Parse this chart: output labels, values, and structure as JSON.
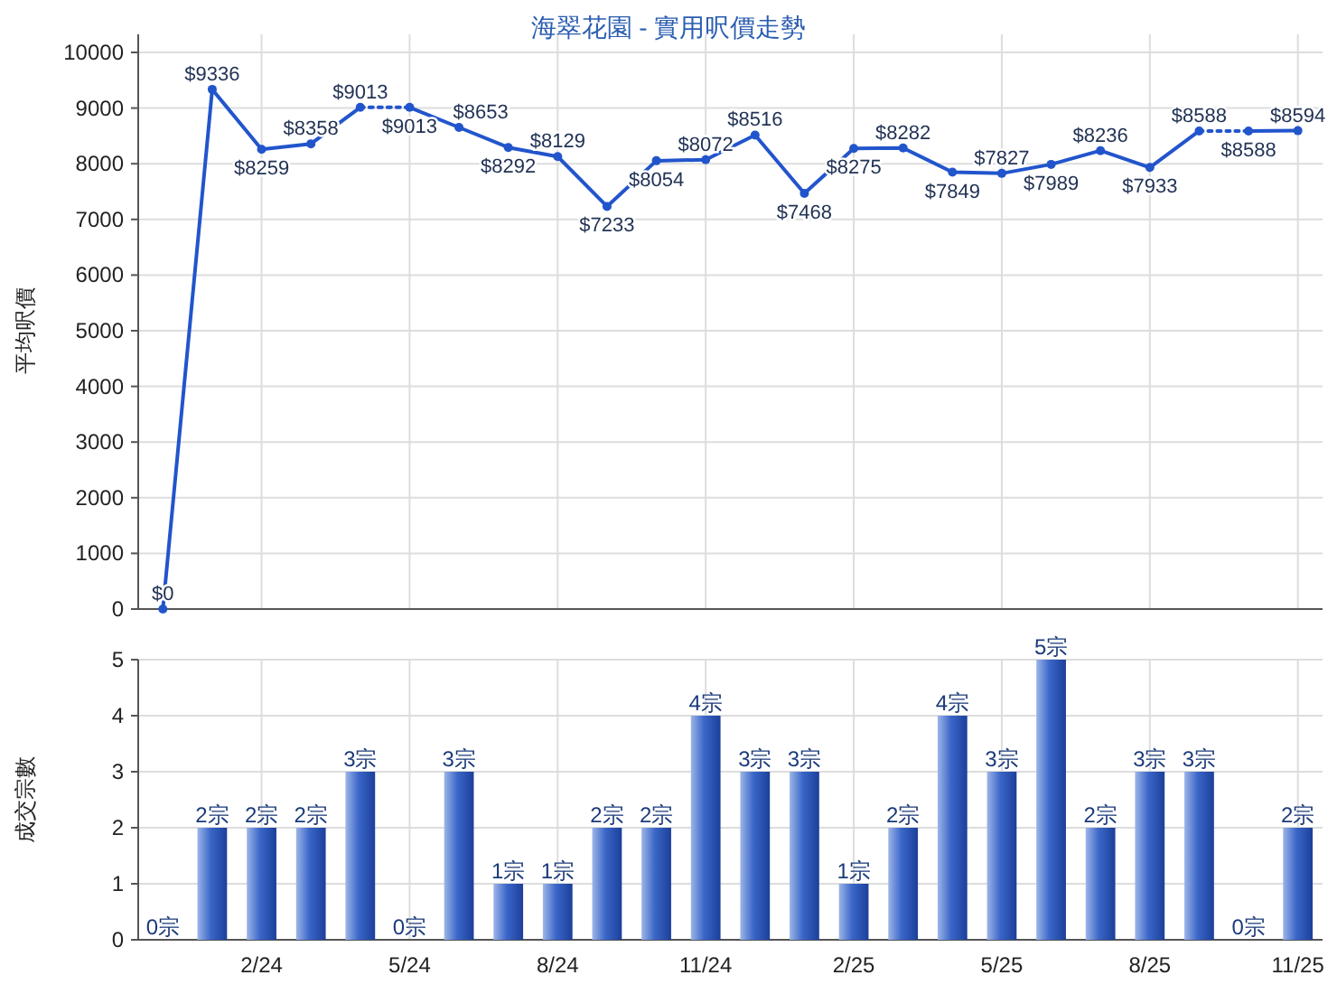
{
  "chart_data": [
    {
      "type": "line",
      "title": "海翠花園 - 實用呎價走勢",
      "ylabel": "平均呎價",
      "categories": [
        null,
        null,
        null,
        null,
        null,
        null,
        null,
        null,
        null,
        null,
        null,
        null,
        null,
        null,
        null,
        null,
        null,
        null,
        null,
        null,
        null,
        null,
        null,
        null
      ],
      "series": [
        {
          "color": "#2255cc",
          "marker": "circle",
          "line_style": "solid",
          "values": [
            0,
            9336,
            8259,
            8358,
            9013,
            null,
            null,
            null,
            null,
            null,
            null,
            null,
            null,
            null,
            null,
            null,
            null,
            null,
            null,
            null,
            null,
            null,
            null,
            null
          ],
          "value_labels": [
            "$0",
            "$9336",
            "$8259",
            "$8358",
            "$9013",
            null,
            null,
            null,
            null,
            null,
            null,
            null,
            null,
            null,
            null,
            null,
            null,
            null,
            null,
            null,
            null,
            null,
            null,
            null
          ]
        },
        {
          "color": "#2255cc",
          "marker": "circle",
          "line_style": "solid",
          "values": [
            null,
            null,
            null,
            null,
            null,
            9013,
            8653,
            8292,
            8129,
            7233,
            8054,
            8072,
            8516,
            7468,
            8275,
            8282,
            7849,
            7827,
            7989,
            8236,
            7933,
            8588,
            null,
            null
          ],
          "value_labels": [
            null,
            null,
            null,
            null,
            null,
            "$9013",
            "$8653",
            "$8292",
            "$8129",
            "$7233",
            "$8054",
            "$8072",
            "$8516",
            "$7468",
            "$8275",
            "$8282",
            "$7849",
            "$7827",
            "$7989",
            "$8236",
            "$7933",
            "$8588",
            null,
            null
          ]
        },
        {
          "color": "#2255cc",
          "marker": "circle",
          "line_style": "solid",
          "values": [
            null,
            null,
            null,
            null,
            null,
            null,
            null,
            null,
            null,
            null,
            null,
            null,
            null,
            null,
            null,
            null,
            null,
            null,
            null,
            null,
            null,
            null,
            8588,
            8594
          ],
          "value_labels": [
            null,
            null,
            null,
            null,
            null,
            null,
            null,
            null,
            null,
            null,
            null,
            null,
            null,
            null,
            null,
            null,
            null,
            null,
            null,
            null,
            null,
            null,
            "$8588",
            "$8594"
          ]
        },
        {
          "color": "#2255cc",
          "line_style": "dotted",
          "values": [
            null,
            null,
            null,
            null,
            9013,
            9013,
            null,
            null,
            null,
            null,
            null,
            null,
            null,
            null,
            null,
            null,
            null,
            null,
            null,
            null,
            null,
            null,
            null,
            null
          ]
        },
        {
          "color": "#2255cc",
          "line_style": "dotted",
          "values": [
            null,
            null,
            null,
            null,
            null,
            null,
            null,
            null,
            null,
            null,
            null,
            null,
            null,
            null,
            null,
            null,
            null,
            null,
            null,
            null,
            null,
            8588,
            8588,
            null
          ]
        }
      ],
      "ylim": [
        0,
        10000
      ],
      "yticks": [
        0,
        1000,
        2000,
        3000,
        4000,
        5000,
        6000,
        7000,
        8000,
        9000,
        10000
      ],
      "grid": true,
      "tick_labels": "y"
    },
    {
      "type": "bar",
      "ylabel": "成交宗數",
      "categories": [
        null,
        null,
        "2/24",
        null,
        null,
        "5/24",
        null,
        null,
        "8/24",
        null,
        null,
        "11/24",
        null,
        null,
        "2/25",
        null,
        null,
        "5/25",
        null,
        null,
        "8/25",
        null,
        null,
        "11/25"
      ],
      "values": [
        0,
        2,
        2,
        2,
        3,
        0,
        3,
        1,
        1,
        2,
        2,
        4,
        3,
        3,
        1,
        2,
        4,
        3,
        5,
        2,
        3,
        3,
        0,
        2
      ],
      "value_labels": [
        "0宗",
        "2宗",
        "2宗",
        "2宗",
        "3宗",
        "0宗",
        "3宗",
        "1宗",
        "1宗",
        "2宗",
        "2宗",
        "4宗",
        "3宗",
        "3宗",
        "1宗",
        "2宗",
        "4宗",
        "3宗",
        "5宗",
        "2宗",
        "3宗",
        "3宗",
        "0宗",
        "2宗"
      ],
      "color": "#3a66c8",
      "ylim": [
        0,
        5
      ],
      "yticks": [
        0,
        1,
        2,
        3,
        4,
        5
      ],
      "grid": true
    }
  ]
}
